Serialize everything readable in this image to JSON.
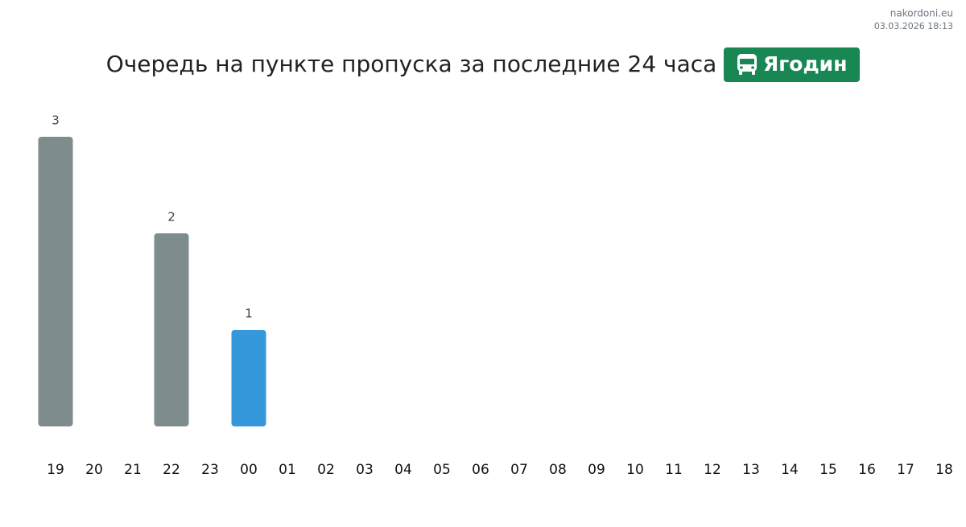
{
  "site": "nakordoni.eu",
  "timestamp": "03.03.2026 18:13",
  "chart_data": {
    "type": "bar",
    "title": "Очередь на пункте пропуска за последние 24 часа",
    "badge": "Ягодин",
    "categories": [
      "19",
      "20",
      "21",
      "22",
      "23",
      "00",
      "01",
      "02",
      "03",
      "04",
      "05",
      "06",
      "07",
      "08",
      "09",
      "10",
      "11",
      "12",
      "13",
      "14",
      "15",
      "16",
      "17",
      "18"
    ],
    "values": [
      3,
      0,
      0,
      2,
      0,
      1,
      0,
      0,
      0,
      0,
      0,
      0,
      0,
      0,
      0,
      0,
      0,
      0,
      0,
      0,
      0,
      0,
      0,
      0
    ],
    "colors": [
      "#7f8c8d",
      "#7f8c8d",
      "#7f8c8d",
      "#7f8c8d",
      "#7f8c8d",
      "#3498db",
      "#7f8c8d",
      "#7f8c8d",
      "#7f8c8d",
      "#7f8c8d",
      "#7f8c8d",
      "#7f8c8d",
      "#7f8c8d",
      "#7f8c8d",
      "#7f8c8d",
      "#7f8c8d",
      "#7f8c8d",
      "#7f8c8d",
      "#7f8c8d",
      "#7f8c8d",
      "#7f8c8d",
      "#7f8c8d",
      "#7f8c8d",
      "#7f8c8d"
    ],
    "ylim": [
      0,
      3
    ],
    "grid": false
  }
}
